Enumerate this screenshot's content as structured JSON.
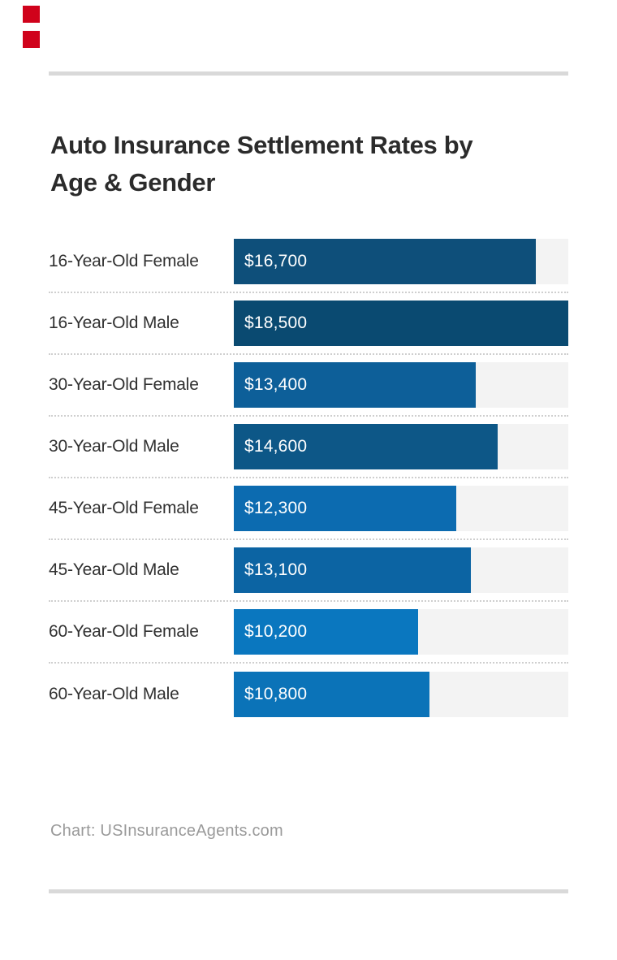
{
  "page": {
    "background": "#ffffff"
  },
  "decoration": {
    "red_square_color": "#d0021b",
    "rule_color": "#d9d9d9"
  },
  "title": {
    "line1": "Auto Insurance Settlement Rates by",
    "line2": "Age & Gender"
  },
  "footer": {
    "source_label": "Chart: USInsuranceAgents.com"
  },
  "chart_data": {
    "type": "bar",
    "orientation": "horizontal",
    "title": "Auto Insurance Settlement Rates by Age & Gender",
    "categories": [
      "16-Year-Old Female",
      "16-Year-Old Male",
      "30-Year-Old Female",
      "30-Year-Old Male",
      "45-Year-Old Female",
      "45-Year-Old Male",
      "60-Year-Old Female",
      "60-Year-Old Male"
    ],
    "values": [
      16700,
      18500,
      13400,
      14600,
      12300,
      13100,
      10200,
      10800
    ],
    "value_labels": [
      "$16,700",
      "$18,500",
      "$13,400",
      "$14,600",
      "$12,300",
      "$13,100",
      "$10,200",
      "$10,800"
    ],
    "xlabel": "",
    "ylabel": "",
    "xlim": [
      0,
      18500
    ],
    "grid": false,
    "legend": false,
    "bar_track_color": "#f3f3f3",
    "separator_style": "dotted",
    "source": "Chart: USInsuranceAgents.com",
    "rows": [
      {
        "label": "16-Year-Old Female",
        "value": 16700,
        "value_label": "$16,700",
        "width_pct": "90.27%",
        "color": "#0e4f7a"
      },
      {
        "label": "16-Year-Old Male",
        "value": 18500,
        "value_label": "$18,500",
        "width_pct": "100%",
        "color": "#0a4a71"
      },
      {
        "label": "30-Year-Old Female",
        "value": 13400,
        "value_label": "$13,400",
        "width_pct": "72.43%",
        "color": "#0d5f99"
      },
      {
        "label": "30-Year-Old Male",
        "value": 14600,
        "value_label": "$14,600",
        "width_pct": "78.92%",
        "color": "#0d5787"
      },
      {
        "label": "45-Year-Old Female",
        "value": 12300,
        "value_label": "$12,300",
        "width_pct": "66.49%",
        "color": "#0c6bb0"
      },
      {
        "label": "45-Year-Old Male",
        "value": 13100,
        "value_label": "$13,100",
        "width_pct": "70.81%",
        "color": "#0c64a3"
      },
      {
        "label": "60-Year-Old Female",
        "value": 10200,
        "value_label": "$10,200",
        "width_pct": "55.14%",
        "color": "#0a77bf"
      },
      {
        "label": "60-Year-Old Male",
        "value": 10800,
        "value_label": "$10,800",
        "width_pct": "58.38%",
        "color": "#0b73b8"
      }
    ]
  }
}
